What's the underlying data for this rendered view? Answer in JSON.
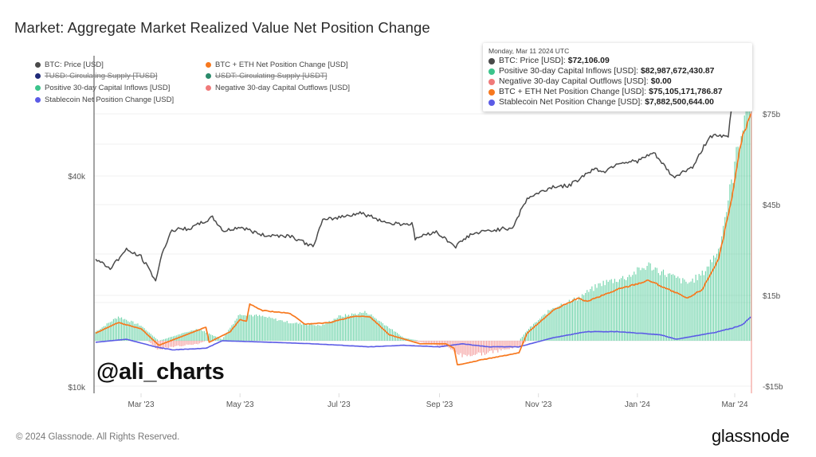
{
  "header": {
    "title": "Market: Aggregate Market Realized Value Net Position Change"
  },
  "legend": [
    {
      "label": "BTC: Price [USD]",
      "color": "#4a4a4a",
      "struck": false
    },
    {
      "label": "BTC + ETH Net Position Change [USD]",
      "color": "#f7781e",
      "struck": false
    },
    {
      "label": "TUSD: Circulating Supply [TUSD]",
      "color": "#1f2a78",
      "struck": true
    },
    {
      "label": "USDT: Circulating Supply [USDT]",
      "color": "#2a8a6a",
      "struck": true
    },
    {
      "label": "Positive 30-day Capital Inflows [USD]",
      "color": "#3cc48c",
      "struck": false
    },
    {
      "label": "Negative 30-day Capital Outflows [USD]",
      "color": "#f07a7a",
      "struck": false
    },
    {
      "label": "Stablecoin Net Position Change [USD]",
      "color": "#5b5be6",
      "struck": false
    }
  ],
  "tooltip": {
    "date": "Monday, Mar 11 2024 UTC",
    "rows": [
      {
        "label": "BTC: Price [USD]:",
        "value": "$72,106.09",
        "color": "#4a4a4a"
      },
      {
        "label": "Positive 30-day Capital Inflows [USD]:",
        "value": "$82,987,672,430.87",
        "color": "#3cc48c"
      },
      {
        "label": "Negative 30-day Capital Outflows [USD]:",
        "value": "$0.00",
        "color": "#f07a7a"
      },
      {
        "label": "BTC + ETH Net Position Change [USD]:",
        "value": "$75,105,171,786.87",
        "color": "#f7781e"
      },
      {
        "label": "Stablecoin Net Position Change [USD]:",
        "value": "$7,882,500,644.00",
        "color": "#5b5be6"
      }
    ]
  },
  "watermark": "@ali_charts",
  "footer": {
    "copyright": "© 2024 Glassnode. All Rights Reserved.",
    "brand": "glassnode"
  },
  "chart_data": {
    "type": "line",
    "title": "Market: Aggregate Market Realized Value Net Position Change",
    "x_range": [
      "2023-02-01",
      "2024-03-11"
    ],
    "x_ticks": [
      "Mar '23",
      "May '23",
      "Jul '23",
      "Sep '23",
      "Nov '23",
      "Jan '24",
      "Mar '24"
    ],
    "y_left": {
      "label": "BTC Price (USD)",
      "scale": "log",
      "ticks": [
        "$10k",
        "$40k"
      ],
      "tick_values": [
        10000,
        40000
      ],
      "range": [
        10000,
        80000
      ]
    },
    "y_right": {
      "label": "Net Position Change (USD)",
      "scale": "linear",
      "ticks": [
        "-$15b",
        "$15b",
        "$45b",
        "$75b"
      ],
      "tick_values": [
        -15,
        15,
        45,
        75
      ],
      "unit": "billion USD"
    },
    "grid": true,
    "legend_position": "top-left",
    "series": [
      {
        "name": "BTC: Price [USD]",
        "axis": "left",
        "kind": "line",
        "color": "#4a4a4a",
        "points": [
          [
            "2023-02-01",
            23100
          ],
          [
            "2023-02-10",
            21800
          ],
          [
            "2023-02-20",
            24600
          ],
          [
            "2023-03-01",
            23500
          ],
          [
            "2023-03-10",
            20100
          ],
          [
            "2023-03-15",
            24800
          ],
          [
            "2023-03-20",
            28000
          ],
          [
            "2023-04-01",
            28400
          ],
          [
            "2023-04-14",
            30400
          ],
          [
            "2023-04-21",
            27800
          ],
          [
            "2023-05-01",
            28600
          ],
          [
            "2023-05-15",
            27100
          ],
          [
            "2023-06-01",
            27000
          ],
          [
            "2023-06-15",
            25100
          ],
          [
            "2023-06-21",
            29800
          ],
          [
            "2023-07-01",
            30500
          ],
          [
            "2023-07-14",
            31400
          ],
          [
            "2023-08-01",
            29300
          ],
          [
            "2023-08-15",
            29200
          ],
          [
            "2023-08-17",
            26500
          ],
          [
            "2023-08-29",
            27800
          ],
          [
            "2023-09-11",
            25200
          ],
          [
            "2023-09-20",
            27200
          ],
          [
            "2023-10-01",
            27900
          ],
          [
            "2023-10-16",
            28500
          ],
          [
            "2023-10-23",
            33000
          ],
          [
            "2023-10-25",
            34500
          ],
          [
            "2023-11-10",
            37300
          ],
          [
            "2023-11-20",
            37500
          ],
          [
            "2023-12-05",
            41900
          ],
          [
            "2023-12-12",
            41200
          ],
          [
            "2023-12-20",
            43600
          ],
          [
            "2024-01-01",
            44100
          ],
          [
            "2024-01-11",
            46500
          ],
          [
            "2024-01-23",
            39600
          ],
          [
            "2024-02-05",
            42700
          ],
          [
            "2024-02-10",
            47700
          ],
          [
            "2024-02-15",
            52100
          ],
          [
            "2024-02-26",
            51700
          ],
          [
            "2024-02-28",
            62500
          ],
          [
            "2024-03-05",
            66000
          ],
          [
            "2024-03-08",
            68300
          ],
          [
            "2024-03-11",
            72106
          ]
        ]
      },
      {
        "name": "Positive 30-day Capital Inflows [USD]",
        "axis": "right",
        "kind": "bar",
        "color": "#3cc48c",
        "unit": "billion USD",
        "points": [
          [
            "2023-02-01",
            3
          ],
          [
            "2023-02-15",
            8
          ],
          [
            "2023-03-01",
            5
          ],
          [
            "2023-03-12",
            0
          ],
          [
            "2023-04-05",
            4
          ],
          [
            "2023-04-20",
            0.5
          ],
          [
            "2023-05-01",
            9
          ],
          [
            "2023-05-15",
            8
          ],
          [
            "2023-06-01",
            6
          ],
          [
            "2023-06-20",
            5
          ],
          [
            "2023-07-01",
            8
          ],
          [
            "2023-07-18",
            9.5
          ],
          [
            "2023-08-10",
            1
          ],
          [
            "2023-08-20",
            0
          ],
          [
            "2023-10-20",
            0
          ],
          [
            "2023-10-26",
            4
          ],
          [
            "2023-11-10",
            11
          ],
          [
            "2023-11-25",
            14
          ],
          [
            "2023-12-10",
            19
          ],
          [
            "2023-12-25",
            21
          ],
          [
            "2024-01-08",
            25
          ],
          [
            "2024-01-15",
            23
          ],
          [
            "2024-02-01",
            19
          ],
          [
            "2024-02-10",
            22
          ],
          [
            "2024-02-20",
            30
          ],
          [
            "2024-02-28",
            52
          ],
          [
            "2024-03-05",
            70
          ],
          [
            "2024-03-11",
            83
          ]
        ]
      },
      {
        "name": "Negative 30-day Capital Outflows [USD]",
        "axis": "right",
        "kind": "bar",
        "color": "#f07a7a",
        "unit": "billion USD",
        "points": [
          [
            "2023-03-05",
            0
          ],
          [
            "2023-03-12",
            -3
          ],
          [
            "2023-03-20",
            -2
          ],
          [
            "2023-04-05",
            -1
          ],
          [
            "2023-04-10",
            0
          ],
          [
            "2023-08-15",
            0
          ],
          [
            "2023-08-25",
            -1
          ],
          [
            "2023-09-05",
            -2
          ],
          [
            "2023-09-15",
            -5
          ],
          [
            "2023-10-01",
            -4
          ],
          [
            "2023-10-20",
            -2
          ],
          [
            "2023-10-25",
            0
          ],
          [
            "2024-03-11",
            0
          ]
        ]
      },
      {
        "name": "BTC + ETH Net Position Change [USD]",
        "axis": "right",
        "kind": "line",
        "color": "#f7781e",
        "unit": "billion USD",
        "points": [
          [
            "2023-02-01",
            2.5
          ],
          [
            "2023-02-15",
            6
          ],
          [
            "2023-03-01",
            4
          ],
          [
            "2023-03-12",
            -1.5
          ],
          [
            "2023-04-10",
            4.5
          ],
          [
            "2023-04-12",
            -0.5
          ],
          [
            "2023-04-25",
            3
          ],
          [
            "2023-05-01",
            7
          ],
          [
            "2023-05-05",
            6.5
          ],
          [
            "2023-05-07",
            12
          ],
          [
            "2023-05-15",
            10
          ],
          [
            "2023-06-01",
            9
          ],
          [
            "2023-06-10",
            5.5
          ],
          [
            "2023-06-25",
            6
          ],
          [
            "2023-07-10",
            8
          ],
          [
            "2023-07-20",
            8
          ],
          [
            "2023-08-01",
            2
          ],
          [
            "2023-08-20",
            -1
          ],
          [
            "2023-09-05",
            -1
          ],
          [
            "2023-09-10",
            -2.5
          ],
          [
            "2023-09-12",
            -8
          ],
          [
            "2023-09-25",
            -6.5
          ],
          [
            "2023-10-20",
            -4
          ],
          [
            "2023-10-25",
            2.5
          ],
          [
            "2023-11-10",
            10
          ],
          [
            "2023-11-25",
            14
          ],
          [
            "2023-12-01",
            13
          ],
          [
            "2023-12-20",
            17
          ],
          [
            "2024-01-08",
            20
          ],
          [
            "2024-01-20",
            17
          ],
          [
            "2024-02-01",
            14
          ],
          [
            "2024-02-10",
            17
          ],
          [
            "2024-02-20",
            27
          ],
          [
            "2024-02-28",
            46
          ],
          [
            "2024-03-05",
            66
          ],
          [
            "2024-03-11",
            75.1
          ]
        ]
      },
      {
        "name": "Stablecoin Net Position Change [USD]",
        "axis": "right",
        "kind": "line",
        "color": "#5b5be6",
        "unit": "billion USD",
        "points": [
          [
            "2023-02-01",
            -0.5
          ],
          [
            "2023-02-20",
            0.5
          ],
          [
            "2023-03-10",
            -2
          ],
          [
            "2023-03-20",
            -3
          ],
          [
            "2023-04-10",
            -2.5
          ],
          [
            "2023-04-20",
            0
          ],
          [
            "2023-05-20",
            -0.5
          ],
          [
            "2023-06-15",
            -1
          ],
          [
            "2023-07-20",
            -2
          ],
          [
            "2023-08-10",
            -1.5
          ],
          [
            "2023-09-01",
            -2
          ],
          [
            "2023-09-15",
            -1
          ],
          [
            "2023-10-01",
            -2
          ],
          [
            "2023-10-20",
            -2
          ],
          [
            "2023-11-10",
            1
          ],
          [
            "2023-12-01",
            3
          ],
          [
            "2023-12-20",
            3
          ],
          [
            "2024-01-15",
            2
          ],
          [
            "2024-01-25",
            0.5
          ],
          [
            "2024-02-10",
            2
          ],
          [
            "2024-02-20",
            3
          ],
          [
            "2024-03-05",
            5
          ],
          [
            "2024-03-11",
            7.9
          ]
        ]
      }
    ]
  }
}
